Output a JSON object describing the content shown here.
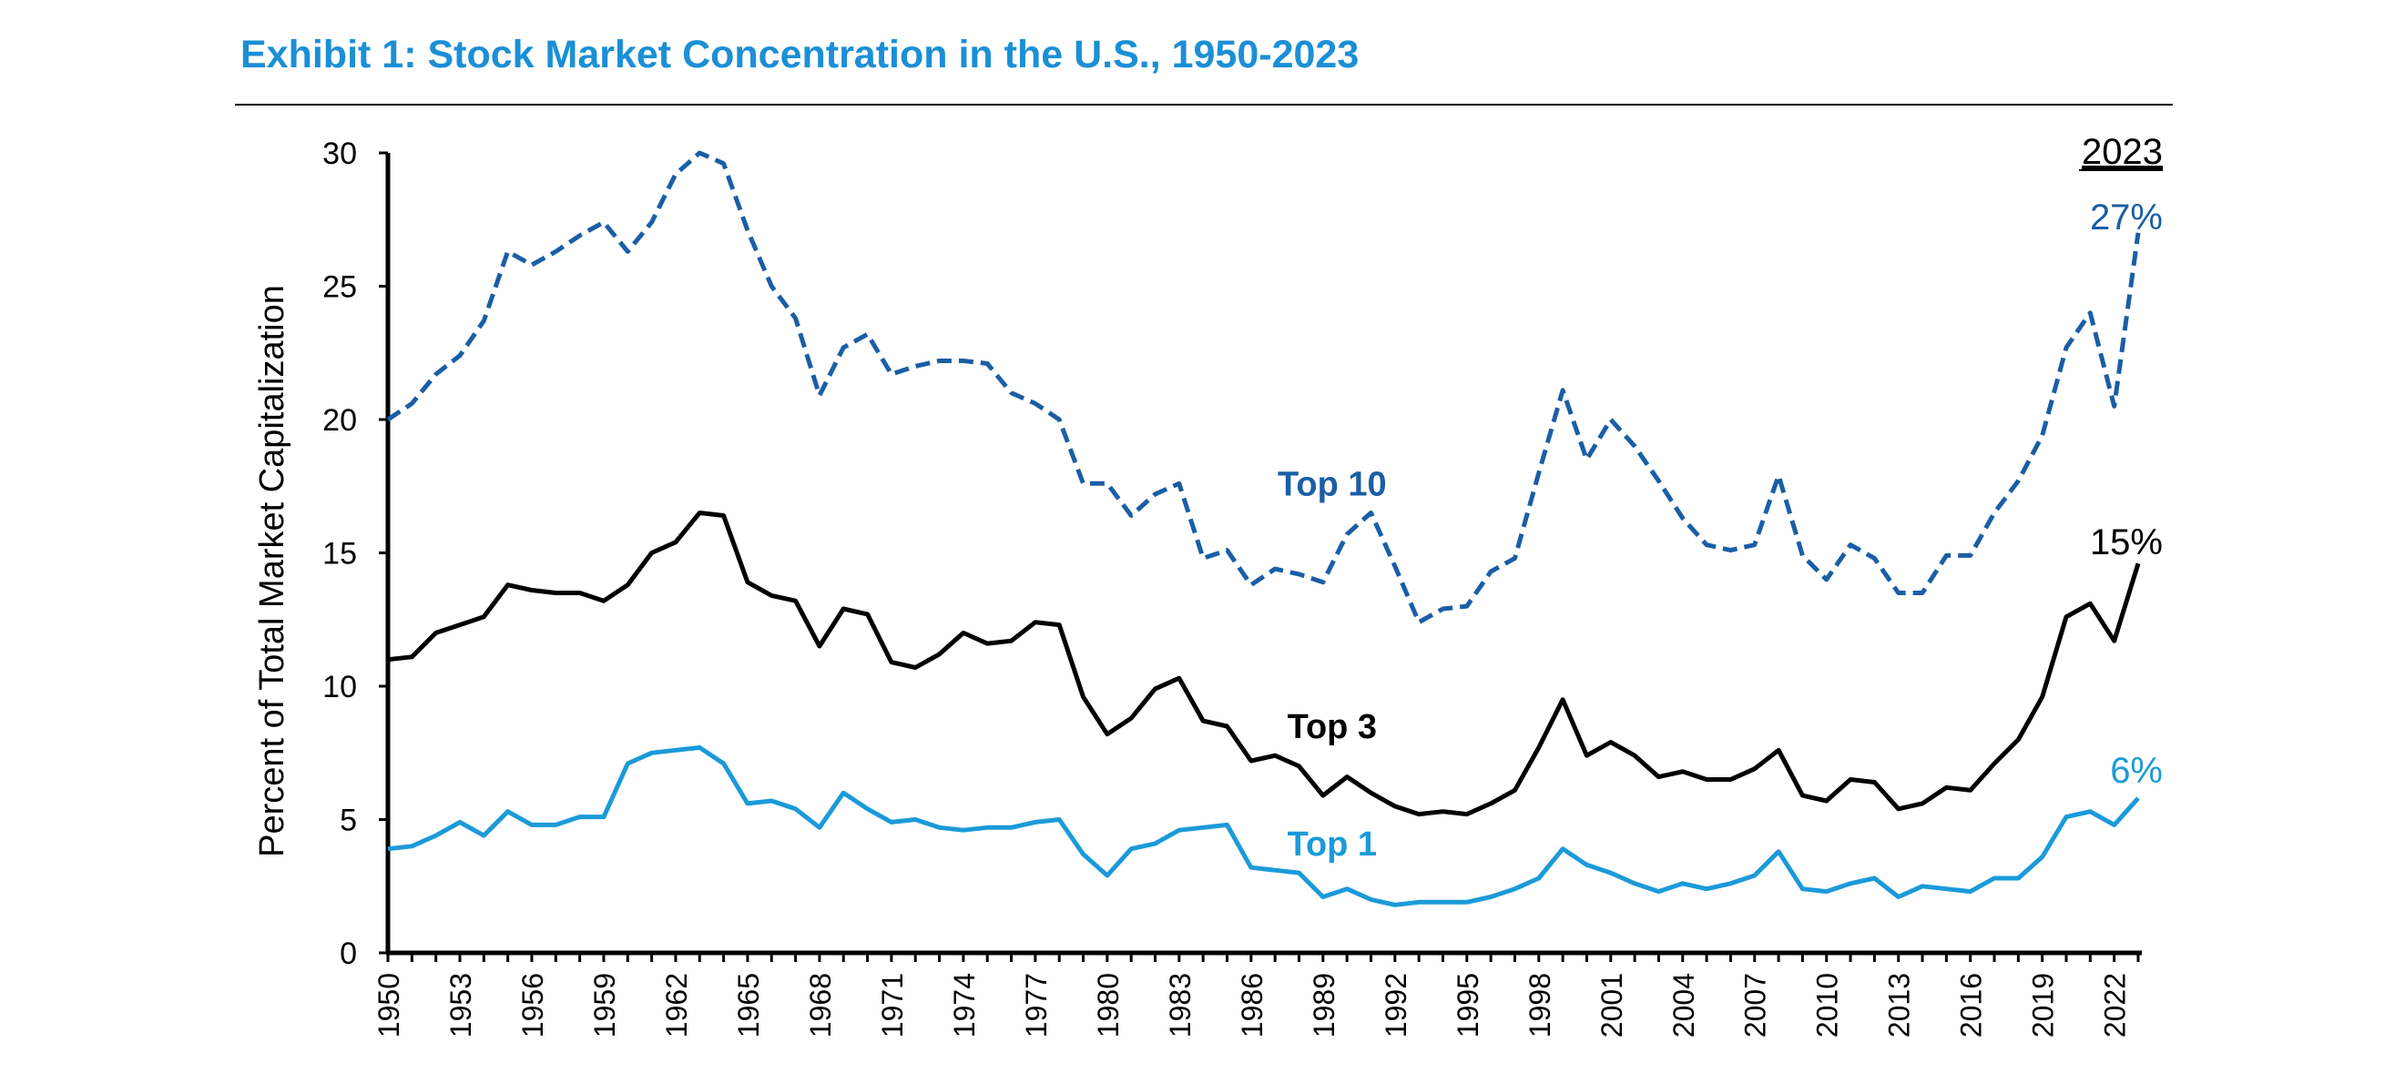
{
  "chart_data": {
    "type": "line",
    "title": "Exhibit 1: Stock Market Concentration in the U.S., 1950-2023",
    "ylabel": "Percent of Total Market Capitalization",
    "xlabel": "",
    "ylim": [
      0,
      30
    ],
    "yticks": [
      "0",
      "5",
      "10",
      "15",
      "20",
      "25",
      "30"
    ],
    "xtick_labels": [
      "1950",
      "1953",
      "1956",
      "1959",
      "1962",
      "1965",
      "1968",
      "1971",
      "1974",
      "1977",
      "1980",
      "1983",
      "1986",
      "1989",
      "1992",
      "1995",
      "1998",
      "2001",
      "2004",
      "2007",
      "2010",
      "2013",
      "2016",
      "2019",
      "2022"
    ],
    "x_start": 1950,
    "x_end": 2023,
    "grid": false,
    "legend": "none",
    "series": [
      {
        "name": "Top 10",
        "color": "#1a5ea6",
        "dash": true,
        "label_year": 1989,
        "label_value": 17.5,
        "values": [
          20.0,
          20.6,
          21.7,
          22.4,
          23.7,
          26.3,
          25.8,
          26.3,
          26.9,
          27.4,
          26.3,
          27.4,
          29.2,
          30.0,
          29.6,
          27.1,
          25.0,
          23.8,
          20.9,
          22.7,
          23.2,
          21.7,
          22.0,
          22.2,
          22.2,
          22.1,
          21.0,
          20.6,
          20.0,
          17.6,
          17.6,
          16.4,
          17.2,
          17.6,
          14.8,
          15.1,
          13.8,
          14.4,
          14.2,
          13.9,
          15.7,
          16.5,
          14.5,
          12.4,
          12.9,
          13.0,
          14.3,
          14.8,
          18.0,
          21.1,
          18.5,
          20.0,
          19.0,
          17.7,
          16.3,
          15.3,
          15.1,
          15.3,
          17.9,
          14.9,
          14.0,
          15.3,
          14.8,
          13.5,
          13.5,
          14.9,
          14.9,
          16.5,
          17.7,
          19.4,
          22.7,
          24.0,
          20.5,
          27.0
        ]
      },
      {
        "name": "Top 3",
        "color": "#000000",
        "dash": false,
        "label_year": 1989,
        "label_value": 8.4,
        "values": [
          11.0,
          11.1,
          12.0,
          12.3,
          12.6,
          13.8,
          13.6,
          13.5,
          13.5,
          13.2,
          13.8,
          15.0,
          15.4,
          16.5,
          16.4,
          13.9,
          13.4,
          13.2,
          11.5,
          12.9,
          12.7,
          10.9,
          10.7,
          11.2,
          12.0,
          11.6,
          11.7,
          12.4,
          12.3,
          9.6,
          8.2,
          8.8,
          9.9,
          10.3,
          8.7,
          8.5,
          7.2,
          7.4,
          7.0,
          5.9,
          6.6,
          6.0,
          5.5,
          5.2,
          5.3,
          5.2,
          5.6,
          6.1,
          7.7,
          9.5,
          7.4,
          7.9,
          7.4,
          6.6,
          6.8,
          6.5,
          6.5,
          6.9,
          7.6,
          5.9,
          5.7,
          6.5,
          6.4,
          5.4,
          5.6,
          6.2,
          6.1,
          7.1,
          8.0,
          9.6,
          12.6,
          13.1,
          11.7,
          14.6
        ]
      },
      {
        "name": "Top 1",
        "color": "#1b9ad9",
        "dash": false,
        "label_year": 1989,
        "label_value": 4.0,
        "values": [
          3.9,
          4.0,
          4.4,
          4.9,
          4.4,
          5.3,
          4.8,
          4.8,
          5.1,
          5.1,
          7.1,
          7.5,
          7.6,
          7.7,
          7.1,
          5.6,
          5.7,
          5.4,
          4.7,
          6.0,
          5.4,
          4.9,
          5.0,
          4.7,
          4.6,
          4.7,
          4.7,
          4.9,
          5.0,
          3.7,
          2.9,
          3.9,
          4.1,
          4.6,
          4.7,
          4.8,
          3.2,
          3.1,
          3.0,
          2.1,
          2.4,
          2.0,
          1.8,
          1.9,
          1.9,
          1.9,
          2.1,
          2.4,
          2.8,
          3.9,
          3.3,
          3.0,
          2.6,
          2.3,
          2.6,
          2.4,
          2.6,
          2.9,
          3.8,
          2.4,
          2.3,
          2.6,
          2.8,
          2.1,
          2.5,
          2.4,
          2.3,
          2.8,
          2.8,
          3.6,
          5.1,
          5.3,
          4.8,
          5.8
        ]
      }
    ],
    "annotations": {
      "year_header": "2023",
      "top10_end": "27%",
      "top3_end": "15%",
      "top1_end": "6%"
    }
  }
}
